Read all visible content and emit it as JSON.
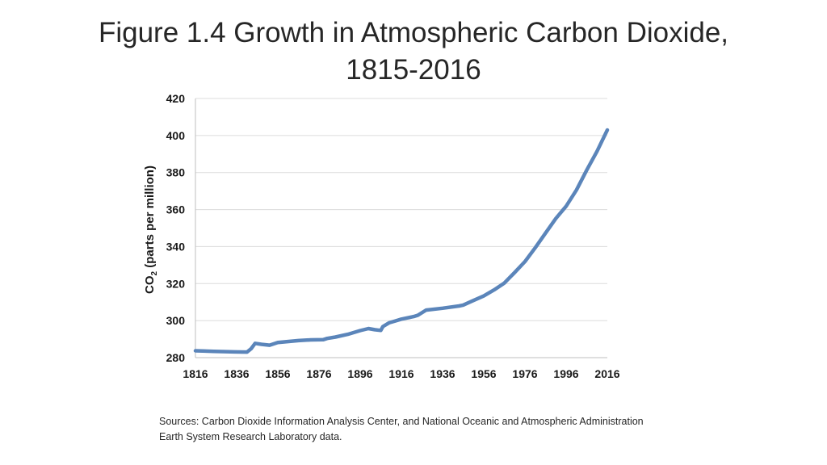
{
  "slide": {
    "title_line1": "Figure 1.4 Growth in Atmospheric Carbon Dioxide,",
    "title_line2": "1815-2016",
    "sources": "Sources: Carbon Dioxide Information Analysis Center, and National Oceanic and Atmospheric Administration Earth System Research Laboratory data."
  },
  "chart_data": {
    "type": "line",
    "title": "",
    "ylabel": "CO2 (parts per million)",
    "ylabel_parts": {
      "main": "CO",
      "subscript": "2",
      "rest": " (parts per million)"
    },
    "xlabel": "",
    "xlim": [
      1816,
      2016
    ],
    "ylim": [
      280,
      420
    ],
    "x_ticks": [
      1816,
      1836,
      1856,
      1876,
      1896,
      1916,
      1936,
      1956,
      1976,
      1996,
      2016
    ],
    "y_ticks": [
      280,
      300,
      320,
      340,
      360,
      380,
      400,
      420
    ],
    "grid": "horizontal",
    "line_color": "#5b85ba",
    "series": [
      {
        "x": [
          1816,
          1825,
          1835,
          1841,
          1843,
          1845,
          1848,
          1852,
          1856,
          1866,
          1872,
          1878,
          1880,
          1884,
          1890,
          1896,
          1900,
          1903,
          1906,
          1907,
          1910,
          1913,
          1916,
          1922,
          1924,
          1928,
          1936,
          1944,
          1946,
          1950,
          1956,
          1961,
          1966,
          1971,
          1976,
          1981,
          1986,
          1991,
          1996,
          2001,
          2006,
          2011,
          2016
        ],
        "y": [
          283.7,
          283.4,
          283.1,
          283,
          284.8,
          287.7,
          287.2,
          286.7,
          288.2,
          289.2,
          289.6,
          289.7,
          290.4,
          291.1,
          292.6,
          294.6,
          295.7,
          295.1,
          294.7,
          296.8,
          298.8,
          299.8,
          300.8,
          302.2,
          302.9,
          305.7,
          306.7,
          307.9,
          308.4,
          310.4,
          313.3,
          316.6,
          320.3,
          326.0,
          331.9,
          339.4,
          347.3,
          355.2,
          361.8,
          370.6,
          381.3,
          391.5,
          403
        ]
      }
    ]
  }
}
